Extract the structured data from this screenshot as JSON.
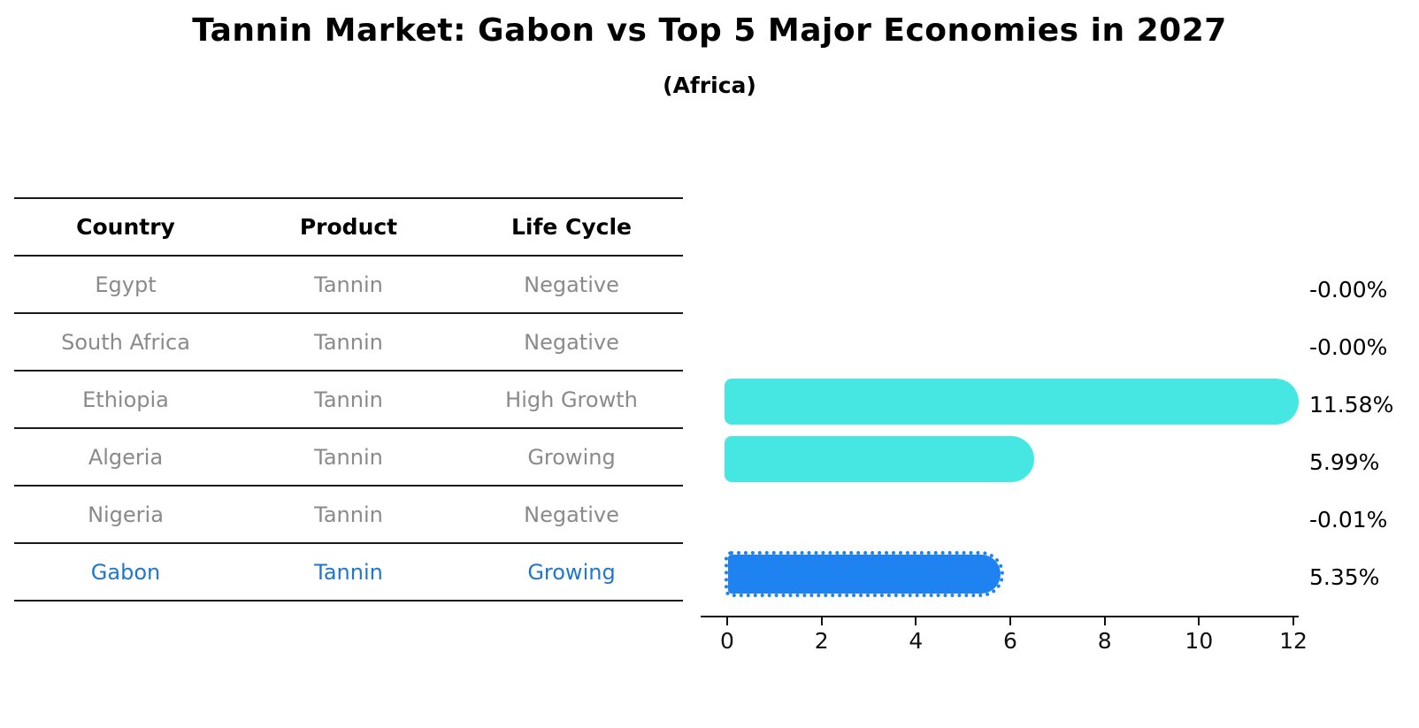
{
  "title": "Tannin Market: Gabon vs Top 5 Major Economies in 2027",
  "subtitle": "(Africa)",
  "colors": {
    "bar_cyan": "#46e7e2",
    "bar_highlight_blue": "#1e82f0",
    "highlight_text_blue": "#1e78cc",
    "table_text_gray": "#8a8a8a",
    "axis_black": "#111111"
  },
  "chart_data": {
    "type": "bar",
    "orientation": "horizontal",
    "title": "Tannin Market: Gabon vs Top 5 Major Economies in 2027",
    "subtitle": "(Africa)",
    "table_headers": [
      "Country",
      "Product",
      "Life Cycle"
    ],
    "rows": [
      {
        "country": "Egypt",
        "product": "Tannin",
        "life_cycle": "Negative",
        "value": -0.0,
        "value_label": "-0.00%",
        "highlight": false
      },
      {
        "country": "South Africa",
        "product": "Tannin",
        "life_cycle": "Negative",
        "value": -0.0,
        "value_label": "-0.00%",
        "highlight": false
      },
      {
        "country": "Ethiopia",
        "product": "Tannin",
        "life_cycle": "High Growth",
        "value": 11.58,
        "value_label": "11.58%",
        "highlight": false
      },
      {
        "country": "Algeria",
        "product": "Tannin",
        "life_cycle": "Growing",
        "value": 5.99,
        "value_label": "5.99%",
        "highlight": false
      },
      {
        "country": "Nigeria",
        "product": "Tannin",
        "life_cycle": "Negative",
        "value": -0.01,
        "value_label": "-0.01%",
        "highlight": false
      },
      {
        "country": "Gabon",
        "product": "Tannin",
        "life_cycle": "Growing",
        "value": 5.35,
        "value_label": "5.35%",
        "highlight": true
      }
    ],
    "x_ticks": [
      0,
      2,
      4,
      6,
      8,
      10,
      12
    ],
    "xlim": [
      0,
      12
    ],
    "grid": false,
    "legend": false
  }
}
